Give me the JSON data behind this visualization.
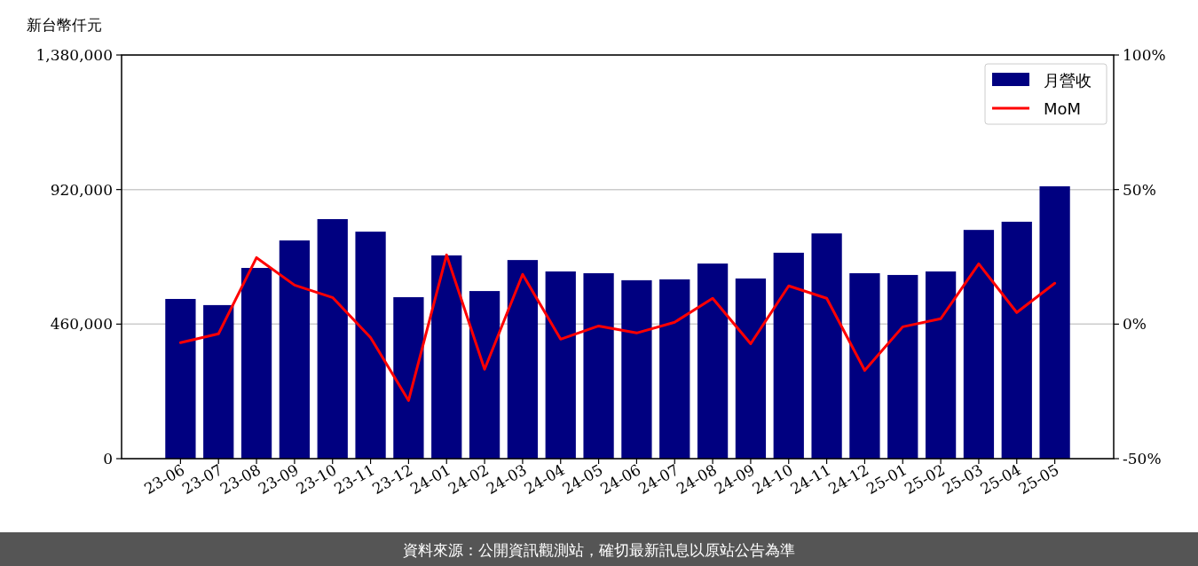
{
  "chart_data": {
    "type": "bar",
    "ylabel": "新台幣仟元",
    "categories": [
      "23-06",
      "23-07",
      "23-08",
      "23-09",
      "23-10",
      "23-11",
      "23-12",
      "24-01",
      "24-02",
      "24-03",
      "24-04",
      "24-05",
      "24-06",
      "24-07",
      "24-08",
      "24-09",
      "24-10",
      "24-11",
      "24-12",
      "25-01",
      "25-02",
      "25-03",
      "25-04",
      "25-05"
    ],
    "series": [
      {
        "name": "月營收",
        "color": "#000080",
        "values": [
          546000,
          525000,
          652000,
          746000,
          819000,
          776000,
          552000,
          695000,
          573000,
          679000,
          640000,
          634000,
          610000,
          613000,
          667000,
          616000,
          704000,
          770000,
          634000,
          628000,
          640000,
          782000,
          810000,
          931000
        ]
      },
      {
        "name": "MoM",
        "type": "line",
        "axis": "y2",
        "color": "#ff0000",
        "values": [
          -6.9,
          -3.6,
          24.7,
          14.5,
          9.9,
          -5.0,
          -28.4,
          25.7,
          -16.8,
          18.5,
          -5.6,
          -0.7,
          -3.3,
          0.7,
          9.6,
          -7.3,
          14.2,
          9.6,
          -17.2,
          -1.0,
          2.0,
          22.4,
          4.3,
          15.2
        ]
      }
    ],
    "ylim": [
      0,
      1380000
    ],
    "yticks": [
      {
        "value": 0,
        "label": "0"
      },
      {
        "value": 460000,
        "label": "460,000"
      },
      {
        "value": 920000,
        "label": "920,000"
      },
      {
        "value": 1380000,
        "label": "1,380,000"
      }
    ],
    "y2lim": [
      -50,
      100
    ],
    "y2ticks": [
      {
        "value": -50,
        "label": "-50%"
      },
      {
        "value": 0,
        "label": "0%"
      },
      {
        "value": 50,
        "label": "50%"
      },
      {
        "value": 100,
        "label": "100%"
      }
    ],
    "grid": "y",
    "legend": "top right",
    "marker": "none",
    "line_style": "solid",
    "annotations": [
      "資料來源：公開資訊觀測站，確切最新訊息以原站公告為準"
    ]
  }
}
